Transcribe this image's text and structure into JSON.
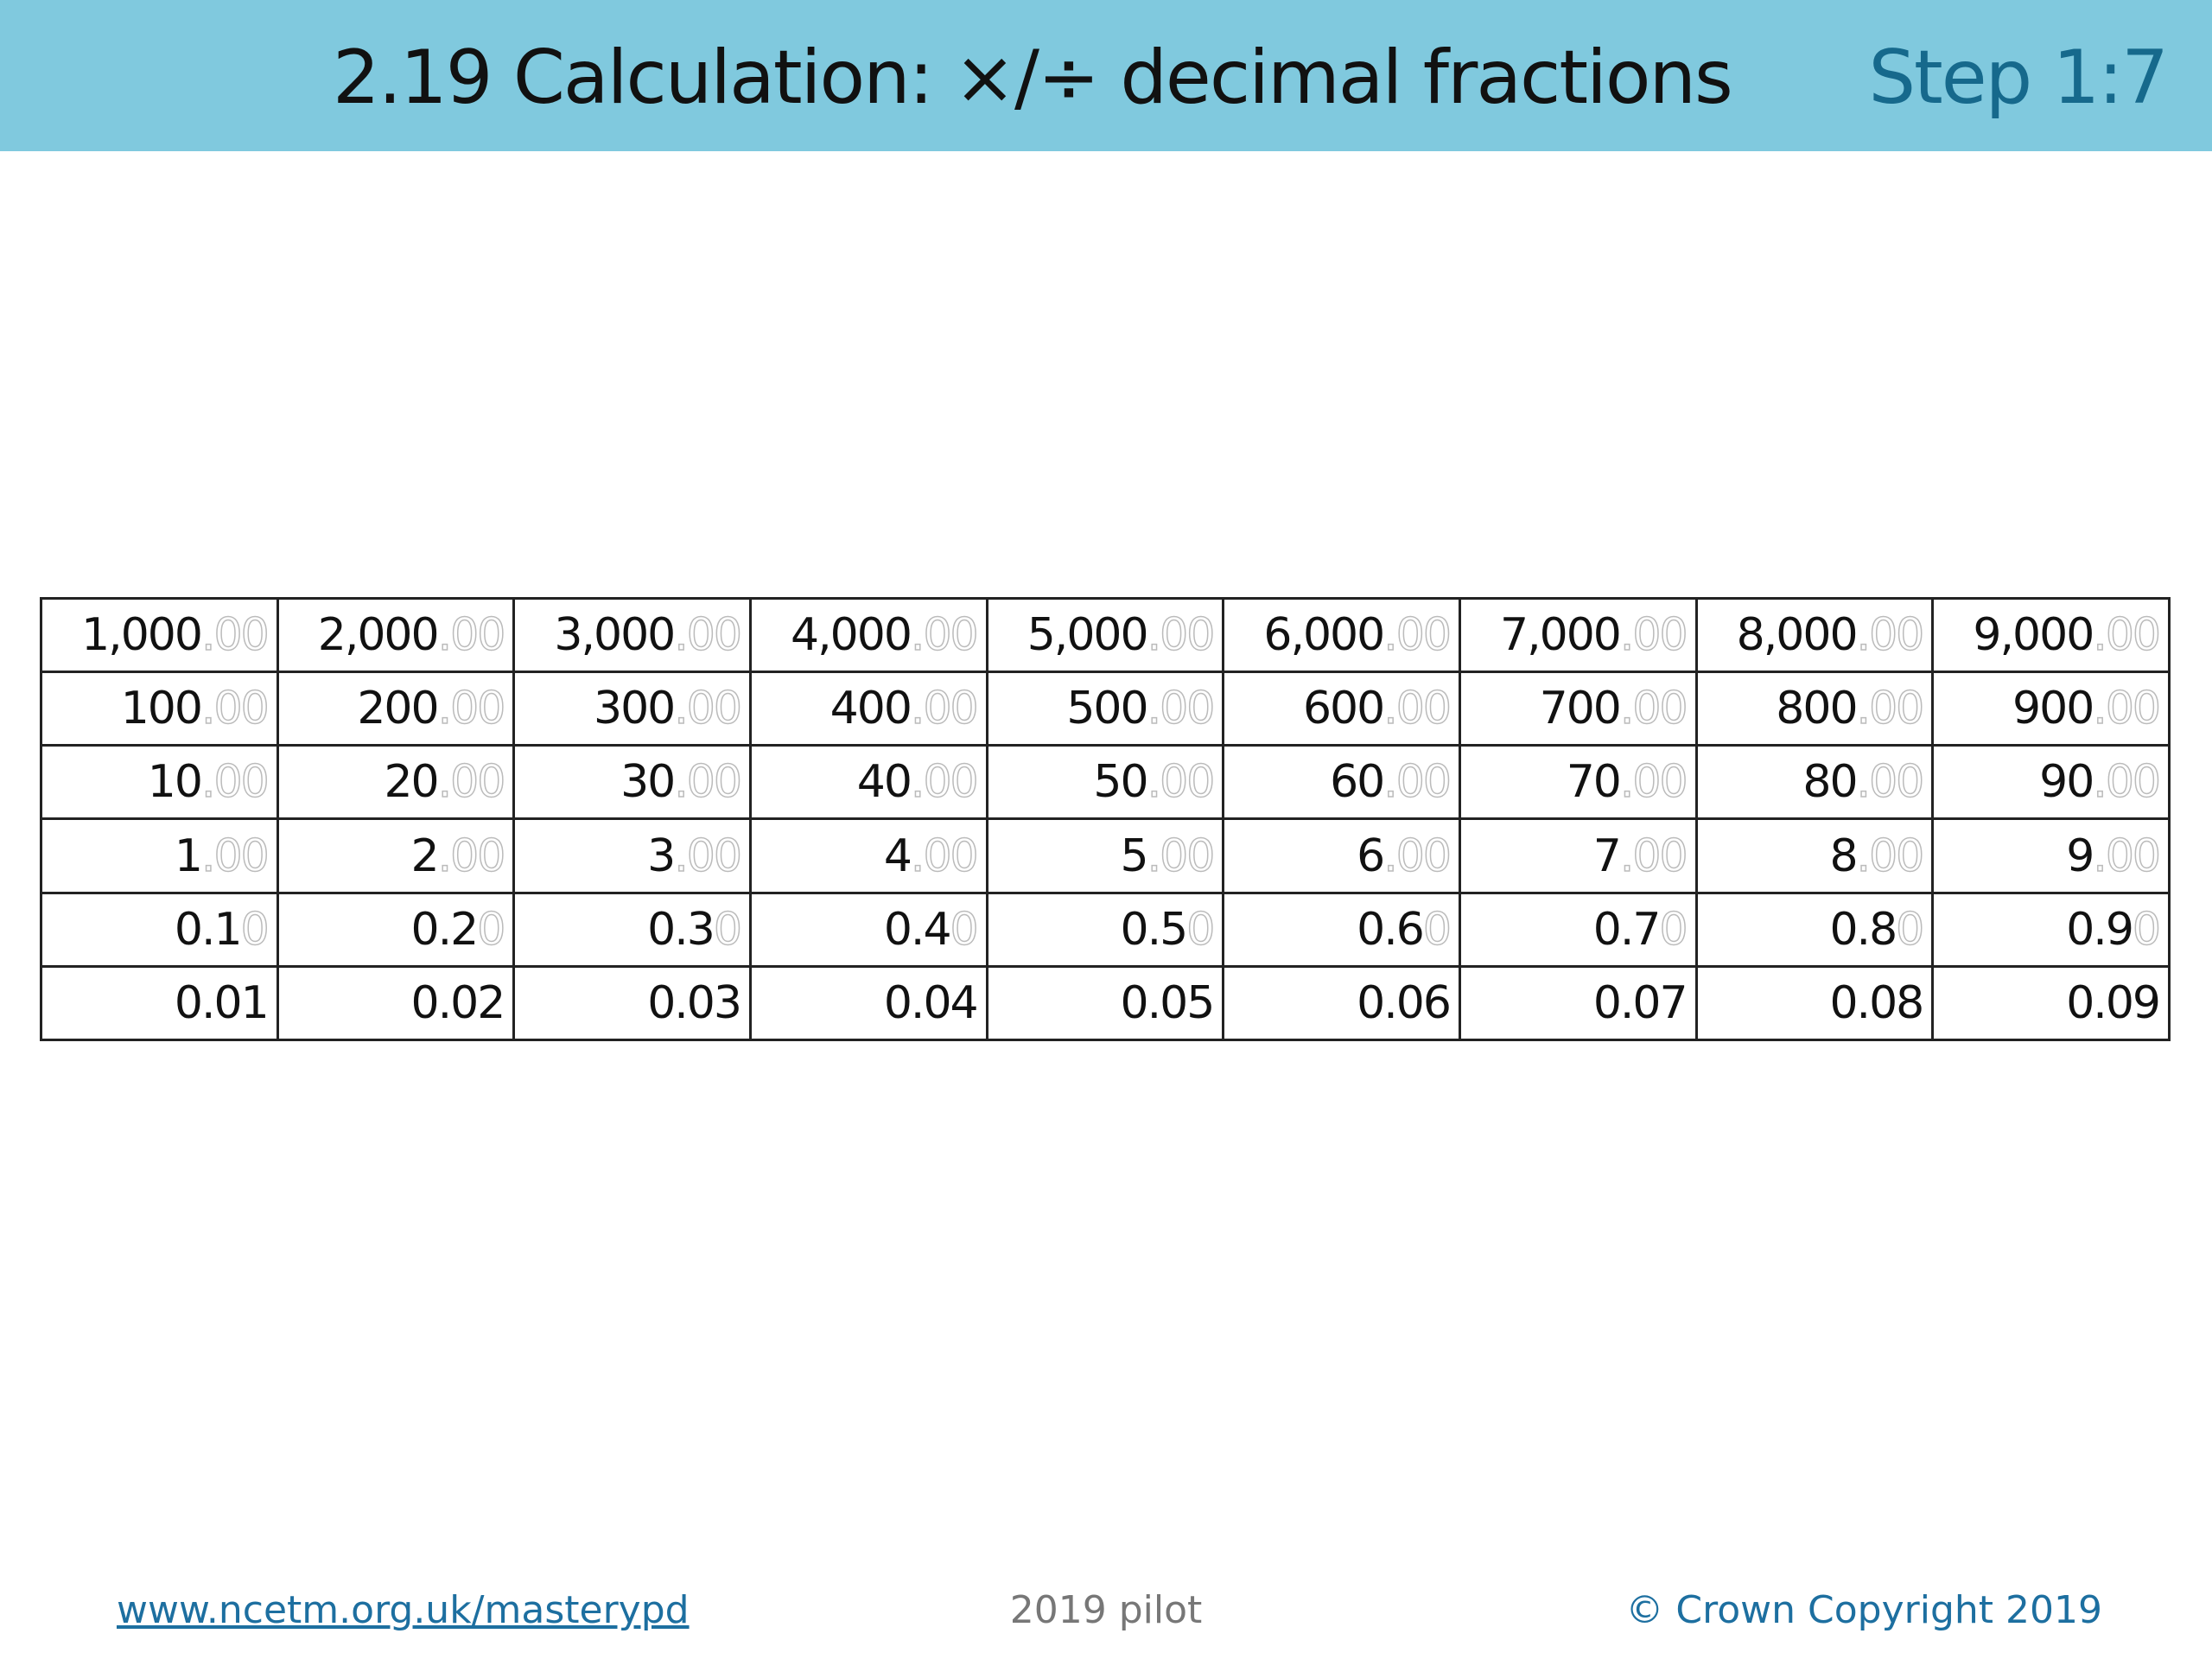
{
  "header": {
    "title": "2.19 Calculation: ×/÷ decimal fractions",
    "step": "Step 1:7"
  },
  "table": {
    "rows": [
      [
        {
          "text": "1,000",
          "ghost": ".00"
        },
        {
          "text": "2,000",
          "ghost": ".00"
        },
        {
          "text": "3,000",
          "ghost": ".00"
        },
        {
          "text": "4,000",
          "ghost": ".00"
        },
        {
          "text": "5,000",
          "ghost": ".00"
        },
        {
          "text": "6,000",
          "ghost": ".00"
        },
        {
          "text": "7,000",
          "ghost": ".00"
        },
        {
          "text": "8,000",
          "ghost": ".00"
        },
        {
          "text": "9,000",
          "ghost": ".00"
        }
      ],
      [
        {
          "text": "100",
          "ghost": ".00"
        },
        {
          "text": "200",
          "ghost": ".00"
        },
        {
          "text": "300",
          "ghost": ".00"
        },
        {
          "text": "400",
          "ghost": ".00"
        },
        {
          "text": "500",
          "ghost": ".00"
        },
        {
          "text": "600",
          "ghost": ".00"
        },
        {
          "text": "700",
          "ghost": ".00"
        },
        {
          "text": "800",
          "ghost": ".00"
        },
        {
          "text": "900",
          "ghost": ".00"
        }
      ],
      [
        {
          "text": "10",
          "ghost": ".00"
        },
        {
          "text": "20",
          "ghost": ".00"
        },
        {
          "text": "30",
          "ghost": ".00"
        },
        {
          "text": "40",
          "ghost": ".00"
        },
        {
          "text": "50",
          "ghost": ".00"
        },
        {
          "text": "60",
          "ghost": ".00"
        },
        {
          "text": "70",
          "ghost": ".00"
        },
        {
          "text": "80",
          "ghost": ".00"
        },
        {
          "text": "90",
          "ghost": ".00"
        }
      ],
      [
        {
          "text": "1",
          "ghost": ".00"
        },
        {
          "text": "2",
          "ghost": ".00"
        },
        {
          "text": "3",
          "ghost": ".00"
        },
        {
          "text": "4",
          "ghost": ".00"
        },
        {
          "text": "5",
          "ghost": ".00"
        },
        {
          "text": "6",
          "ghost": ".00"
        },
        {
          "text": "7",
          "ghost": ".00"
        },
        {
          "text": "8",
          "ghost": ".00"
        },
        {
          "text": "9",
          "ghost": ".00"
        }
      ],
      [
        {
          "text": "0.1",
          "ghost": "0"
        },
        {
          "text": "0.2",
          "ghost": "0"
        },
        {
          "text": "0.3",
          "ghost": "0"
        },
        {
          "text": "0.4",
          "ghost": "0"
        },
        {
          "text": "0.5",
          "ghost": "0"
        },
        {
          "text": "0.6",
          "ghost": "0"
        },
        {
          "text": "0.7",
          "ghost": "0"
        },
        {
          "text": "0.8",
          "ghost": "0"
        },
        {
          "text": "0.9",
          "ghost": "0"
        }
      ],
      [
        {
          "text": "0.01"
        },
        {
          "text": "0.02"
        },
        {
          "text": "0.03"
        },
        {
          "text": "0.04"
        },
        {
          "text": "0.05"
        },
        {
          "text": "0.06"
        },
        {
          "text": "0.07"
        },
        {
          "text": "0.08"
        },
        {
          "text": "0.09"
        }
      ]
    ]
  },
  "footer": {
    "link": "www.ncetm.org.uk/masterypd",
    "note": "2019 pilot",
    "copyright": "© Crown Copyright 2019"
  }
}
